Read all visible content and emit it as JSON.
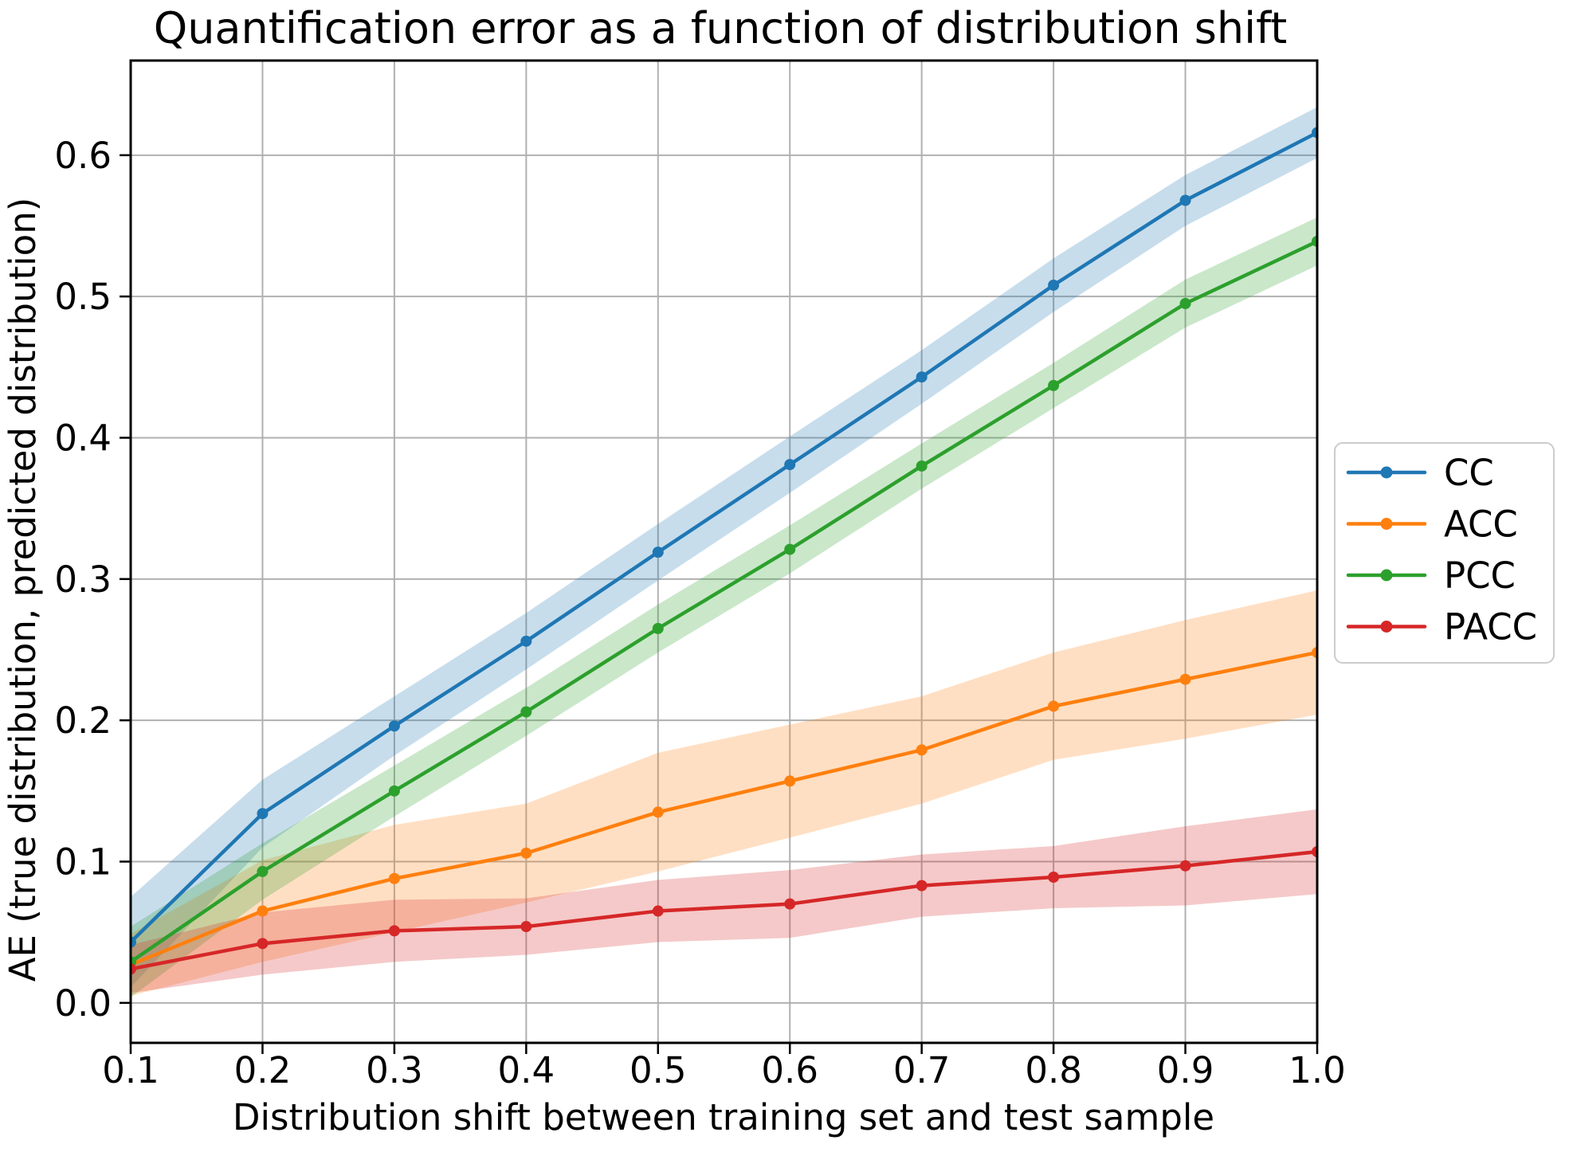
{
  "chart_data": {
    "type": "line",
    "title": "Quantification error as a function of distribution shift",
    "xlabel": "Distribution shift between training set and test sample",
    "ylabel": "AE (true distribution, predicted distribution)",
    "x": [
      0.1,
      0.2,
      0.3,
      0.4,
      0.5,
      0.6,
      0.7,
      0.8,
      0.9,
      1.0
    ],
    "x_tick_labels": [
      "0.1",
      "0.2",
      "0.3",
      "0.4",
      "0.5",
      "0.6",
      "0.7",
      "0.8",
      "0.9",
      "1.0"
    ],
    "y_ticks": [
      0.0,
      0.1,
      0.2,
      0.3,
      0.4,
      0.5,
      0.6
    ],
    "y_tick_labels": [
      "0.0",
      "0.1",
      "0.2",
      "0.3",
      "0.4",
      "0.5",
      "0.6"
    ],
    "xlim": [
      0.1,
      1.0
    ],
    "ylim": [
      -0.0283,
      0.667
    ],
    "grid": true,
    "grid_color": "#b0b0b0",
    "band_alpha": 0.25,
    "legend_position": "outside-right",
    "series": [
      {
        "name": "CC",
        "color": "#1f77b4",
        "values": [
          0.043,
          0.134,
          0.196,
          0.256,
          0.319,
          0.381,
          0.443,
          0.508,
          0.568,
          0.616
        ],
        "band_lower": [
          0.011,
          0.11,
          0.175,
          0.236,
          0.299,
          0.361,
          0.424,
          0.489,
          0.55,
          0.598
        ],
        "band_upper": [
          0.075,
          0.158,
          0.217,
          0.276,
          0.339,
          0.401,
          0.462,
          0.527,
          0.586,
          0.634
        ]
      },
      {
        "name": "ACC",
        "color": "#ff7f0e",
        "values": [
          0.027,
          0.065,
          0.088,
          0.106,
          0.135,
          0.157,
          0.179,
          0.21,
          0.229,
          0.248
        ],
        "band_lower": [
          0.005,
          0.029,
          0.05,
          0.071,
          0.093,
          0.117,
          0.141,
          0.172,
          0.187,
          0.204
        ],
        "band_upper": [
          0.049,
          0.101,
          0.126,
          0.141,
          0.177,
          0.197,
          0.217,
          0.248,
          0.271,
          0.292
        ]
      },
      {
        "name": "PCC",
        "color": "#2ca02c",
        "values": [
          0.029,
          0.093,
          0.15,
          0.206,
          0.265,
          0.321,
          0.38,
          0.437,
          0.495,
          0.539
        ],
        "band_lower": [
          0.004,
          0.073,
          0.132,
          0.189,
          0.248,
          0.304,
          0.364,
          0.421,
          0.478,
          0.522
        ],
        "band_upper": [
          0.054,
          0.113,
          0.168,
          0.223,
          0.282,
          0.338,
          0.396,
          0.453,
          0.512,
          0.556
        ]
      },
      {
        "name": "PACC",
        "color": "#d62728",
        "values": [
          0.024,
          0.042,
          0.051,
          0.054,
          0.065,
          0.07,
          0.083,
          0.089,
          0.097,
          0.107
        ],
        "band_lower": [
          0.007,
          0.02,
          0.029,
          0.034,
          0.043,
          0.046,
          0.061,
          0.067,
          0.069,
          0.077
        ],
        "band_upper": [
          0.041,
          0.064,
          0.073,
          0.074,
          0.087,
          0.094,
          0.105,
          0.111,
          0.125,
          0.137
        ]
      }
    ],
    "legend_labels": [
      "CC",
      "ACC",
      "PCC",
      "PACC"
    ]
  }
}
